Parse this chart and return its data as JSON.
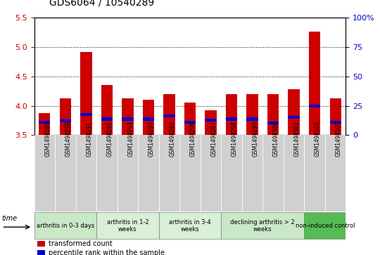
{
  "title": "GDS6064 / 10540289",
  "samples": [
    "GSM1498289",
    "GSM1498290",
    "GSM1498291",
    "GSM1498292",
    "GSM1498293",
    "GSM1498294",
    "GSM1498295",
    "GSM1498296",
    "GSM1498297",
    "GSM1498298",
    "GSM1498299",
    "GSM1498300",
    "GSM1498301",
    "GSM1498302",
    "GSM1498303"
  ],
  "transformed_count": [
    3.87,
    4.13,
    4.92,
    4.35,
    4.13,
    4.1,
    4.2,
    4.05,
    3.92,
    4.2,
    4.2,
    4.2,
    4.28,
    5.27,
    4.13
  ],
  "percentile_bottom": [
    3.7,
    3.72,
    3.83,
    3.75,
    3.75,
    3.75,
    3.8,
    3.7,
    3.73,
    3.75,
    3.75,
    3.68,
    3.78,
    3.97,
    3.7
  ],
  "percentile_height": [
    0.05,
    0.05,
    0.05,
    0.05,
    0.05,
    0.05,
    0.05,
    0.05,
    0.05,
    0.05,
    0.05,
    0.05,
    0.05,
    0.05,
    0.05
  ],
  "bar_color": "#cc0000",
  "percentile_color": "#0000cc",
  "bar_bottom": 3.5,
  "ylim": [
    3.5,
    5.5
  ],
  "yticks_left": [
    3.5,
    4.0,
    4.5,
    5.0,
    5.5
  ],
  "yticks_right": [
    0,
    25,
    50,
    75,
    100
  ],
  "ylabel_left_color": "#cc0000",
  "ylabel_right_color": "#0000cc",
  "groups": [
    {
      "label": "arthritis in 0-3 days",
      "start": 0,
      "end": 3,
      "color": "#c8e8c8"
    },
    {
      "label": "arthritis in 1-2\nweeks",
      "start": 3,
      "end": 6,
      "color": "#d8efd8"
    },
    {
      "label": "arthritis in 3-4\nweeks",
      "start": 6,
      "end": 9,
      "color": "#d8efd8"
    },
    {
      "label": "declining arthritis > 2\nweeks",
      "start": 9,
      "end": 13,
      "color": "#c8e8c8"
    },
    {
      "label": "non-induced control",
      "start": 13,
      "end": 15,
      "color": "#55bb55"
    }
  ],
  "time_label": "time",
  "legend_items": [
    {
      "label": "transformed count",
      "color": "#cc0000"
    },
    {
      "label": "percentile rank within the sample",
      "color": "#0000cc"
    }
  ],
  "bar_width": 0.55,
  "figsize": [
    5.4,
    3.63
  ],
  "dpi": 100
}
